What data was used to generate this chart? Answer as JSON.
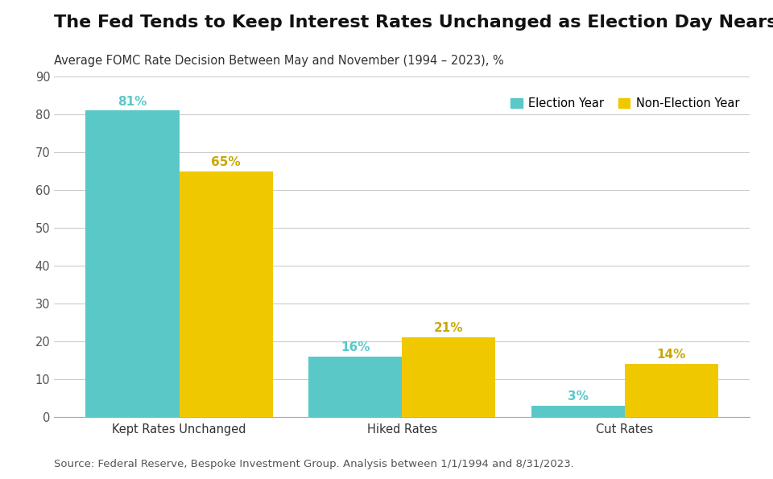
{
  "title": "The Fed Tends to Keep Interest Rates Unchanged as Election Day Nears",
  "subtitle": "Average FOMC Rate Decision Between May and November (1994 – 2023), %",
  "categories": [
    "Kept Rates Unchanged",
    "Hiked Rates",
    "Cut Rates"
  ],
  "election_year": [
    81,
    16,
    3
  ],
  "non_election_year": [
    65,
    21,
    14
  ],
  "election_color": "#5BC8C8",
  "non_election_color": "#F0C800",
  "label_color_election": "#5BC8C8",
  "label_color_non_election": "#C8A800",
  "ylim": [
    0,
    90
  ],
  "yticks": [
    0,
    10,
    20,
    30,
    40,
    50,
    60,
    70,
    80,
    90
  ],
  "bar_width": 0.42,
  "legend_labels": [
    "Election Year",
    "Non-Election Year"
  ],
  "source_text": "Source: Federal Reserve, Bespoke Investment Group. Analysis between 1/1/1994 and 8/31/2023.",
  "title_fontsize": 16,
  "subtitle_fontsize": 10.5,
  "tick_fontsize": 10.5,
  "label_fontsize": 11,
  "legend_fontsize": 10.5,
  "source_fontsize": 9.5,
  "background_color": "#FFFFFF",
  "grid_color": "#CCCCCC"
}
